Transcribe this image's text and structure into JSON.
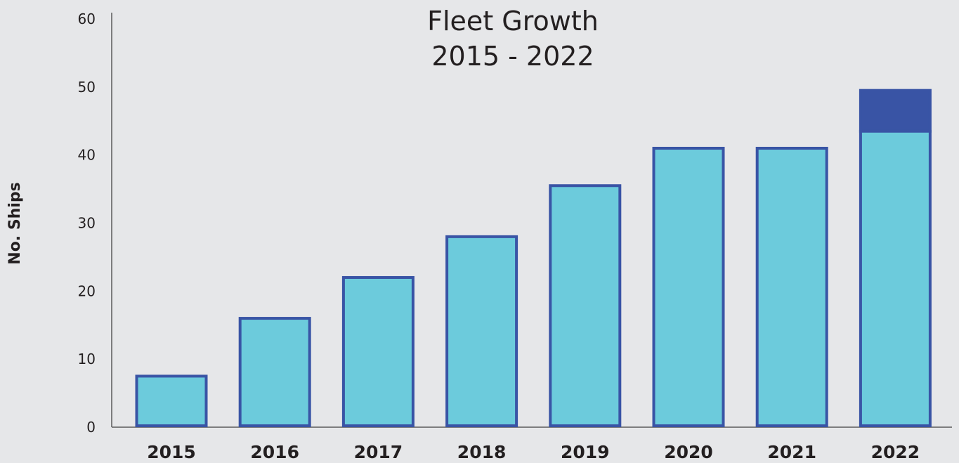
{
  "chart_data": {
    "type": "bar",
    "title": [
      "Fleet Growth",
      "2015 - 2022"
    ],
    "xlabel": "",
    "ylabel": "No. Ships",
    "ylim": [
      0,
      60
    ],
    "yticks": [
      0,
      10,
      20,
      30,
      40,
      50,
      60
    ],
    "grid": false,
    "categories": [
      "2015",
      "2016",
      "2017",
      "2018",
      "2019",
      "2020",
      "2021",
      "2022"
    ],
    "series": [
      {
        "values": [
          7.5,
          16,
          22,
          28,
          35.5,
          41,
          41,
          43.5
        ]
      },
      {
        "values": [
          0,
          0,
          0,
          0,
          0,
          0,
          0,
          6
        ]
      }
    ],
    "colors": {
      "bar_fill": "#6ccbdc",
      "bar_stroke": "#3954a5",
      "stack_fill": "#3954a5",
      "axis": "#5a5a5a",
      "text": "#231f20"
    }
  }
}
